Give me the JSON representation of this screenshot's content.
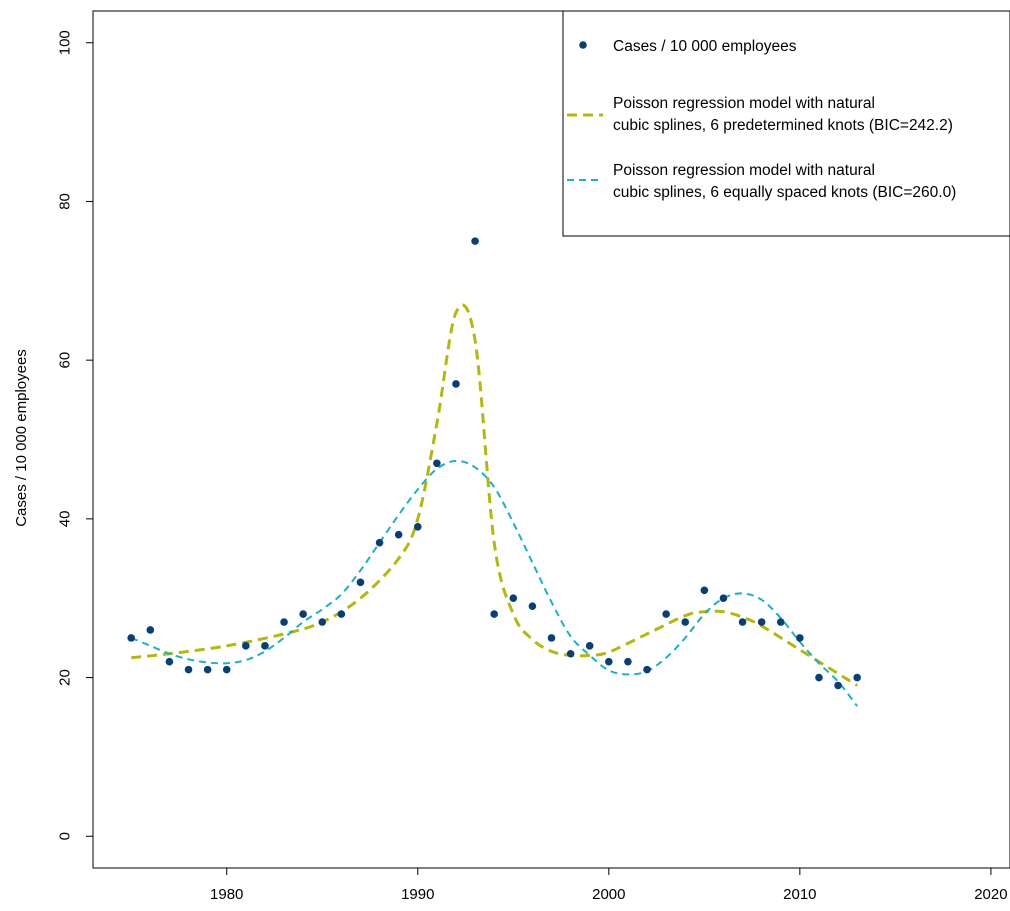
{
  "chart_data": {
    "type": "scatter",
    "xlabel": "",
    "ylabel": "Cases / 10 000 employees",
    "xlim": [
      1973,
      2021
    ],
    "ylim": [
      -4,
      104
    ],
    "xticks": [
      1980,
      1990,
      2000,
      2010,
      2020
    ],
    "yticks": [
      0,
      20,
      40,
      60,
      80,
      100
    ],
    "grid": false,
    "legend_position": "top-right",
    "series": [
      {
        "name": "Cases / 10 000 employees",
        "kind": "points",
        "color": "#083f76",
        "x": [
          1975,
          1976,
          1977,
          1978,
          1979,
          1980,
          1981,
          1982,
          1983,
          1984,
          1985,
          1986,
          1987,
          1988,
          1989,
          1990,
          1991,
          1992,
          1993,
          1994,
          1995,
          1996,
          1997,
          1998,
          1999,
          2000,
          2001,
          2002,
          2003,
          2004,
          2005,
          2006,
          2007,
          2008,
          2009,
          2010,
          2011,
          2012,
          2013
        ],
        "y": [
          25,
          26,
          22,
          21,
          21,
          21,
          24,
          24,
          27,
          28,
          27,
          28,
          32,
          37,
          38,
          39,
          47,
          57,
          75,
          28,
          30,
          29,
          25,
          23,
          24,
          22,
          22,
          21,
          28,
          27,
          31,
          30,
          27,
          27,
          27,
          25,
          20,
          19,
          20
        ]
      },
      {
        "name": "Poisson regression model with natural cubic splines, 6 predetermined knots (BIC=242.2)",
        "legend_lines": [
          "Poisson regression model with natural",
          "cubic splines, 6 predetermined knots (BIC=242.2)"
        ],
        "kind": "dashed-line",
        "color": "#b4b80a",
        "x": [
          1975,
          1977,
          1980,
          1983,
          1985,
          1987,
          1989,
          1990,
          1991,
          1992,
          1993,
          1994,
          1995,
          1996,
          1997,
          1998,
          1999,
          2000,
          2002,
          2004,
          2005,
          2006,
          2007,
          2008,
          2010,
          2012,
          2013
        ],
        "y": [
          22.5,
          23,
          24,
          25.5,
          27,
          30,
          35,
          40,
          52,
          66,
          62.5,
          37,
          28,
          24.8,
          23.3,
          22.8,
          22.8,
          23.2,
          25.5,
          27.8,
          28.3,
          28.3,
          27.6,
          26.5,
          23.5,
          20.5,
          19
        ]
      },
      {
        "name": "Poisson regression model with natural cubic splines, 6 equally spaced knots (BIC=260.0)",
        "legend_lines": [
          "Poisson regression model with natural",
          "cubic splines, 6 equally spaced knots (BIC=260.0)"
        ],
        "kind": "dashed-line",
        "color": "#17b2c4",
        "x": [
          1975,
          1976,
          1977,
          1978,
          1979,
          1980,
          1981,
          1982,
          1983,
          1984,
          1985,
          1986,
          1987,
          1988,
          1989,
          1990,
          1991,
          1992,
          1993,
          1994,
          1995,
          1996,
          1997,
          1998,
          1999,
          2000,
          2001,
          2002,
          2003,
          2004,
          2005,
          2006,
          2007,
          2008,
          2009,
          2010,
          2011,
          2012,
          2013
        ],
        "y": [
          25,
          24,
          23,
          22.3,
          21.9,
          21.8,
          22.2,
          23.3,
          25,
          27,
          28.6,
          30.5,
          33.5,
          37,
          40.5,
          43.7,
          46.3,
          47.3,
          46.5,
          44,
          39.5,
          34.5,
          29.5,
          25.2,
          22.8,
          20.9,
          20.4,
          20.8,
          22.5,
          25,
          28,
          30,
          30.6,
          29.8,
          27.5,
          24.5,
          21.8,
          19.5,
          16.4
        ]
      }
    ]
  }
}
